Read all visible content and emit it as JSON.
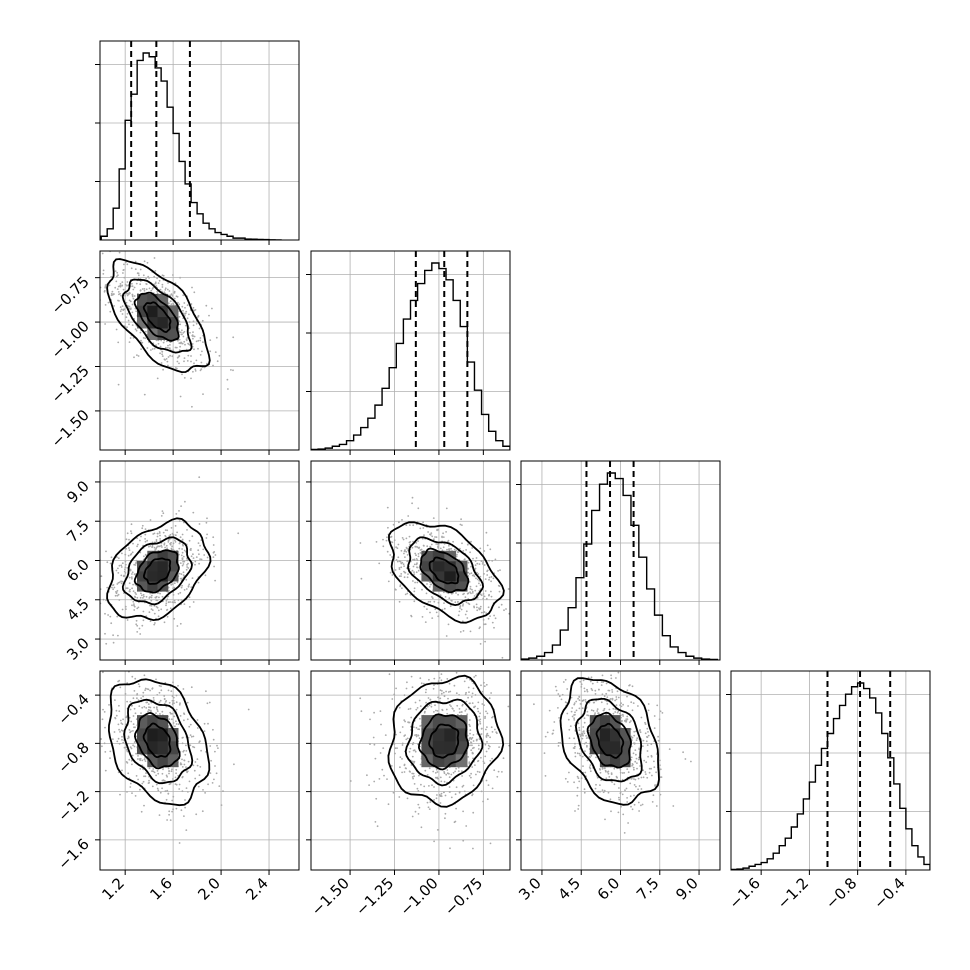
{
  "chart_data": {
    "type": "corner",
    "title": "",
    "parameters": [
      {
        "ticks": [
          1.2,
          1.6,
          2.0,
          2.4
        ],
        "tick_labels": [
          "1.2",
          "1.6",
          "2.0",
          "2.4"
        ],
        "range": [
          0.99,
          2.65
        ],
        "quantiles": [
          1.25,
          1.46,
          1.74
        ],
        "mean": 1.47,
        "sigma": 0.2,
        "histogram": {
          "edges": [
            1.0,
            1.05,
            1.1,
            1.15,
            1.2,
            1.25,
            1.3,
            1.35,
            1.4,
            1.45,
            1.5,
            1.55,
            1.6,
            1.65,
            1.7,
            1.75,
            1.8,
            1.85,
            1.9,
            1.95,
            2.0,
            2.05,
            2.1,
            2.15,
            2.2,
            2.25,
            2.3,
            2.35,
            2.4,
            2.45,
            2.5
          ],
          "counts": [
            2,
            6,
            17,
            38,
            64,
            78,
            96,
            100,
            98,
            92,
            85,
            71,
            57,
            42,
            30,
            20,
            14,
            9,
            6,
            4,
            3,
            2,
            1,
            1,
            0.5,
            0.4,
            0.3,
            0.2,
            0.1,
            0.05
          ]
        }
      },
      {
        "ticks": [
          -1.5,
          -1.25,
          -1.0,
          -0.75
        ],
        "tick_labels": [
          "−1.50",
          "−1.25",
          "−1.00",
          "−0.75"
        ],
        "range": [
          -1.72,
          -0.6
        ],
        "quantiles": [
          -1.13,
          -0.97,
          -0.84
        ],
        "mean": -0.97,
        "sigma": 0.15,
        "histogram": {
          "edges": [
            -1.72,
            -1.68,
            -1.64,
            -1.6,
            -1.56,
            -1.52,
            -1.48,
            -1.44,
            -1.4,
            -1.36,
            -1.32,
            -1.28,
            -1.24,
            -1.2,
            -1.16,
            -1.12,
            -1.08,
            -1.04,
            -1.0,
            -0.96,
            -0.92,
            -0.88,
            -0.84,
            -0.8,
            -0.76,
            -0.72,
            -0.68,
            -0.64,
            -0.6
          ],
          "counts": [
            0.3,
            0.5,
            1,
            2,
            3,
            5,
            8,
            12,
            17,
            24,
            33,
            44,
            57,
            70,
            80,
            89,
            96,
            100,
            97,
            91,
            80,
            66,
            47,
            32,
            19,
            10,
            5,
            2
          ]
        }
      },
      {
        "ticks": [
          3.0,
          4.5,
          6.0,
          7.5,
          9.0
        ],
        "tick_labels": [
          "3.0",
          "4.5",
          "6.0",
          "7.5",
          "9.0"
        ],
        "range": [
          2.2,
          9.8
        ],
        "quantiles": [
          4.7,
          5.6,
          6.5
        ],
        "mean": 5.6,
        "sigma": 0.9,
        "histogram": {
          "edges": [
            2.2,
            2.5,
            2.8,
            3.1,
            3.4,
            3.7,
            4.0,
            4.3,
            4.6,
            4.9,
            5.2,
            5.5,
            5.8,
            6.1,
            6.4,
            6.7,
            7.0,
            7.3,
            7.6,
            7.9,
            8.2,
            8.5,
            8.8,
            9.1,
            9.4,
            9.7
          ],
          "counts": [
            0.5,
            1,
            2,
            4,
            8,
            16,
            28,
            44,
            62,
            80,
            94,
            100,
            97,
            88,
            72,
            55,
            38,
            24,
            13,
            7,
            4,
            2,
            1,
            0.5,
            0.3
          ]
        }
      },
      {
        "ticks": [
          -1.6,
          -1.2,
          -0.8,
          -0.4
        ],
        "tick_labels": [
          "−1.6",
          "−1.2",
          "−0.8",
          "−0.4"
        ],
        "range": [
          -1.85,
          -0.2
        ],
        "quantiles": [
          -1.05,
          -0.78,
          -0.53
        ],
        "mean": -0.78,
        "sigma": 0.25,
        "histogram": {
          "edges": [
            -1.85,
            -1.8,
            -1.75,
            -1.7,
            -1.65,
            -1.6,
            -1.55,
            -1.5,
            -1.45,
            -1.4,
            -1.35,
            -1.3,
            -1.25,
            -1.2,
            -1.15,
            -1.1,
            -1.05,
            -1.0,
            -0.95,
            -0.9,
            -0.85,
            -0.8,
            -0.75,
            -0.7,
            -0.65,
            -0.6,
            -0.55,
            -0.5,
            -0.45,
            -0.4,
            -0.35,
            -0.3,
            -0.25,
            -0.2
          ],
          "counts": [
            0.3,
            0.5,
            1,
            2,
            3,
            4,
            6,
            9,
            13,
            17,
            23,
            30,
            38,
            47,
            56,
            65,
            73,
            81,
            88,
            94,
            98,
            100,
            97,
            92,
            84,
            73,
            60,
            46,
            33,
            22,
            13,
            7,
            3
          ]
        }
      }
    ],
    "correlations": {
      "1-0": -0.6,
      "2-0": 0.35,
      "2-1": -0.45,
      "3-0": -0.3,
      "3-1": 0.1,
      "3-2": -0.3
    },
    "contour_levels_sigma": [
      0.5,
      1.0,
      1.5,
      2.0
    ],
    "grid": true,
    "scatter_color": "#aaaaaa",
    "density_color": "#000000"
  }
}
